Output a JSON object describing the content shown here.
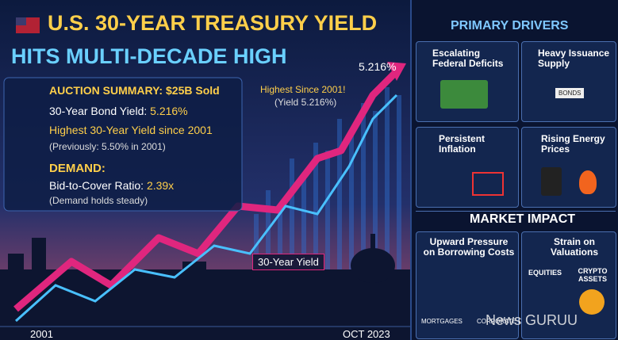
{
  "header": {
    "title_line1": "U.S. 30-YEAR TREASURY YIELD",
    "title_line2": "HITS MULTI-DECADE HIGH"
  },
  "chart": {
    "peak_label": "5.216%",
    "annotation_title": "Highest Since 2001!",
    "annotation_subtitle": "(Yield 5.216%)",
    "line_label": "30-Year Yield",
    "x_start": "2001",
    "x_end": "OCT 2023"
  },
  "summary": {
    "auction_label": "AUCTION SUMMARY:",
    "auction_value": "$25B Sold",
    "yield_label": "30-Year Bond Yield:",
    "yield_value": "5.216%",
    "highest": "Highest 30-Year Yield since 2001",
    "previously": "(Previously: 5.50% in 2001)",
    "demand_title": "DEMAND:",
    "ratio_label": "Bid-to-Cover Ratio:",
    "ratio_value": "2.39x",
    "demand_note": "(Demand holds steady)"
  },
  "drivers": {
    "title": "PRIMARY DRIVERS",
    "cards": [
      {
        "label": "Escalating Federal Deficits"
      },
      {
        "label": "Heavy Issuance Supply",
        "icon_text": "BONDS"
      },
      {
        "label": "Persistent Inflation"
      },
      {
        "label": "Rising Energy Prices"
      }
    ]
  },
  "impact": {
    "title": "MARKET IMPACT",
    "cards": [
      {
        "label": "Upward Pressure on Borrowing Costs",
        "items": [
          "MORTGAGES",
          "CORPORATE DEBT"
        ]
      },
      {
        "label": "Strain on Valuations",
        "items": [
          "EQUITIES",
          "CRYPTO ASSETS"
        ]
      }
    ]
  },
  "watermark": "News GURUU"
}
